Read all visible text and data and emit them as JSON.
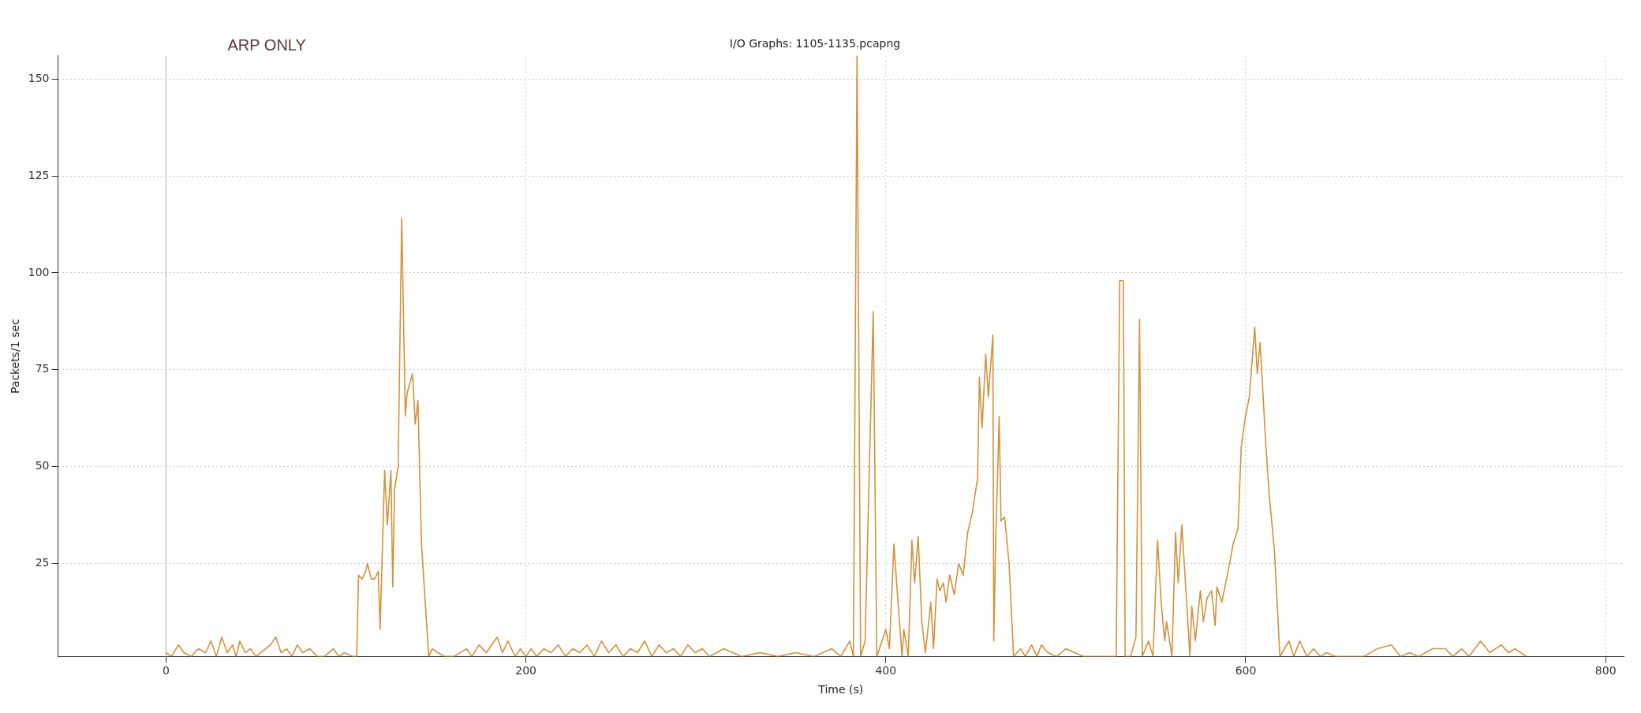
{
  "chart_data": {
    "type": "line",
    "title": "I/O Graphs: 1105-1135.pcapng",
    "xlabel": "Time (s)",
    "ylabel": "Packets/1 sec",
    "annotations": [
      "ARP ONLY"
    ],
    "x": [
      0,
      3,
      7,
      10,
      14,
      18,
      22,
      25,
      28,
      31,
      34,
      37,
      39,
      41,
      44,
      47,
      50,
      58,
      61,
      64,
      67,
      70,
      73,
      76,
      80,
      84,
      88,
      93,
      96,
      99,
      104,
      106,
      107,
      109,
      111,
      112,
      114,
      116,
      118,
      119,
      121.5,
      123,
      125,
      126,
      127,
      129,
      131,
      133,
      134,
      137,
      138.5,
      140,
      142,
      146,
      148,
      151,
      155,
      160,
      167,
      170,
      174,
      178,
      184,
      187,
      190,
      194,
      197,
      200,
      203,
      206,
      210,
      214,
      218,
      222,
      226,
      230,
      234,
      238,
      242,
      246,
      250,
      254,
      258,
      262,
      266,
      270,
      274,
      278,
      282,
      286,
      290,
      294,
      298,
      302,
      306,
      310,
      320,
      330,
      340,
      350,
      360,
      370,
      375,
      380,
      382,
      384,
      386,
      388.5,
      393,
      395,
      400,
      402,
      404.5,
      406,
      409,
      410,
      412.5,
      414.5,
      416,
      418,
      420,
      422,
      425,
      426.5,
      428.5,
      430,
      432,
      433.5,
      435.5,
      438,
      440.5,
      443,
      445.5,
      448,
      451,
      452,
      453.5,
      455.5,
      457,
      459.5,
      460,
      461,
      463,
      464,
      466,
      468.5,
      471,
      475,
      477.5,
      481,
      484,
      486.5,
      490,
      495,
      500,
      505,
      510,
      520,
      528,
      530,
      532,
      533,
      536,
      539,
      541,
      542.5,
      546,
      548.5,
      551,
      553,
      555,
      556,
      559,
      561,
      562.5,
      564.5,
      566.5,
      569,
      570,
      572,
      574.8,
      576.5,
      578.5,
      581,
      583,
      584,
      586.7,
      590.6,
      593,
      595.7,
      597.5,
      599.5,
      602,
      605,
      606.4,
      608,
      611,
      613,
      616,
      619,
      624,
      626.7,
      630,
      634,
      637.7,
      641.5,
      645,
      650,
      665.6,
      673,
      681,
      686,
      691,
      696,
      704,
      711,
      715,
      720,
      724,
      730.5,
      735.6,
      742,
      746,
      749.6,
      756
    ],
    "series": [
      {
        "color": "#d4913a",
        "values": [
          2,
          1,
          4,
          2,
          1,
          3,
          2,
          5,
          1,
          6,
          2,
          4,
          1,
          5,
          2,
          3,
          1,
          4,
          6,
          2,
          3,
          1,
          4,
          2,
          3,
          1,
          1,
          3,
          1,
          2,
          1,
          1,
          22,
          21,
          23,
          25,
          21,
          21,
          23,
          8,
          49,
          35,
          49,
          19,
          44,
          50,
          114,
          63,
          69,
          74,
          61,
          67,
          30,
          1,
          3,
          2,
          1,
          1,
          3,
          1,
          4,
          2,
          6,
          2,
          5,
          1,
          3,
          1,
          3,
          1,
          3,
          2,
          4,
          1,
          3,
          2,
          4,
          1,
          5,
          2,
          4,
          1,
          3,
          2,
          5,
          1,
          4,
          2,
          3,
          1,
          4,
          2,
          3,
          1,
          2,
          3,
          1,
          2,
          1,
          2,
          1,
          3,
          1,
          5,
          1,
          156,
          1,
          5,
          90,
          1,
          8,
          3,
          30,
          20,
          1,
          8,
          1,
          31,
          20,
          32,
          10,
          2,
          15,
          3,
          21,
          18,
          20,
          15,
          22,
          17,
          25,
          22,
          33,
          38,
          47,
          73,
          60,
          79,
          68,
          84,
          5,
          30,
          63,
          36,
          37,
          25,
          1,
          3,
          1,
          4,
          1,
          4,
          2,
          1,
          3,
          2,
          1,
          1,
          1,
          98,
          98,
          1,
          1,
          6,
          88,
          1,
          5,
          1,
          31,
          15,
          5,
          10,
          1,
          33,
          20,
          35,
          20,
          1,
          14,
          5,
          18,
          10,
          16,
          18,
          9,
          19,
          15,
          24,
          30,
          34,
          55,
          62,
          68,
          86,
          74,
          82,
          57,
          43,
          28,
          1,
          5,
          1,
          5,
          1,
          3,
          1,
          2,
          1,
          1,
          3,
          4,
          1,
          2,
          1,
          3,
          3,
          1,
          3,
          1,
          5,
          2,
          4,
          2,
          3,
          1
        ]
      }
    ],
    "xlim": [
      -60,
      810
    ],
    "ylim": [
      1,
      156
    ],
    "xticks": [
      0,
      200,
      400,
      600,
      800
    ],
    "yticks": [
      25,
      50,
      75,
      100,
      125,
      150
    ],
    "grid": true,
    "marker": "none",
    "line_style": "solid",
    "legend": false,
    "ref_lines": [
      {
        "axis": "x",
        "value": 0,
        "color": "#c8c8c8",
        "line_style": "solid"
      }
    ]
  }
}
